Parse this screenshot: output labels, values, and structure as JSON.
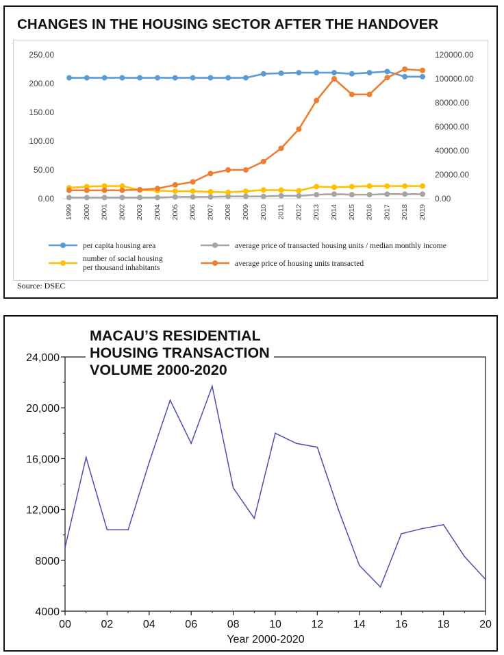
{
  "chart_data": [
    {
      "type": "line",
      "title": "CHANGES IN THE HOUSING SECTOR AFTER THE HANDOVER",
      "categories": [
        "1999",
        "2000",
        "2001",
        "2002",
        "2003",
        "2004",
        "2005",
        "2006",
        "2007",
        "2008",
        "2009",
        "2010",
        "2011",
        "2012",
        "2013",
        "2014",
        "2015",
        "2016",
        "2017",
        "2018",
        "2019"
      ],
      "y_left": {
        "ticks": [
          "250.00",
          "200.00",
          "150.00",
          "100.00",
          "50.00",
          "0.00"
        ],
        "ylim": [
          0,
          250
        ]
      },
      "y_right": {
        "ticks": [
          "120000.00",
          "100000.00",
          "80000.00",
          "60000.00",
          "40000.00",
          "20000.00",
          "0.00"
        ],
        "ylim": [
          0,
          120000
        ]
      },
      "series": [
        {
          "name": "per capita housing area",
          "axis": "left",
          "color": "#5b9bd5",
          "values": [
            210,
            210,
            210,
            210,
            210,
            210,
            210,
            210,
            210,
            210,
            210,
            217,
            218,
            219,
            219,
            219,
            217,
            219,
            221,
            212,
            212
          ]
        },
        {
          "name": "average price of transacted housing units / median monthly income",
          "axis": "left",
          "color": "#a5a5a5",
          "values": [
            2,
            2,
            2,
            2,
            2,
            2,
            3,
            3,
            3,
            4,
            4,
            4,
            5,
            5,
            7,
            8,
            7,
            7,
            8,
            8,
            8
          ]
        },
        {
          "name": "number of social housing per thousand inhabitants",
          "axis": "left",
          "color": "#ffc000",
          "values": [
            19,
            21,
            22,
            22,
            15,
            14,
            13,
            13,
            12,
            11,
            13,
            15,
            15,
            14,
            21,
            20,
            21,
            22,
            22,
            22,
            22
          ]
        },
        {
          "name": "average price of housing units transacted",
          "axis": "right",
          "color": "#ed7d31",
          "values": [
            7000,
            7000,
            7000,
            7000,
            7500,
            8500,
            11500,
            14000,
            21000,
            24000,
            24000,
            31000,
            42000,
            58000,
            82000,
            100000,
            87000,
            87000,
            101000,
            108000,
            107000
          ]
        }
      ],
      "legend": {
        "placement": "bottom",
        "items": [
          {
            "label": "per capita housing area",
            "color": "#5b9bd5"
          },
          {
            "label": "average price of transacted housing units / median monthly income",
            "color": "#a5a5a5"
          },
          {
            "label_lines": [
              "number of social housing",
              "per thousand inhabitants"
            ],
            "color": "#ffc000"
          },
          {
            "label": "average price of housing units transacted",
            "color": "#ed7d31"
          }
        ]
      },
      "source": "Source: DSEC"
    },
    {
      "type": "line",
      "title_lines": [
        "MACAU’S RESIDENTIAL",
        "HOUSING TRANSACTION",
        "VOLUME 2000-2020"
      ],
      "xlabel": "Year 2000-2020",
      "x": [
        0,
        1,
        2,
        3,
        4,
        5,
        6,
        7,
        8,
        9,
        10,
        11,
        12,
        13,
        14,
        15,
        16,
        17,
        18,
        19,
        20
      ],
      "values": [
        9000,
        16100,
        10400,
        10400,
        15700,
        20600,
        17200,
        21700,
        13700,
        11300,
        18000,
        17200,
        16900,
        12000,
        7600,
        5900,
        10100,
        10500,
        10800,
        8300,
        6500
      ],
      "xticks": [
        "00",
        "02",
        "04",
        "06",
        "08",
        "10",
        "12",
        "14",
        "16",
        "18",
        "20"
      ],
      "yticks": [
        "4000",
        "8000",
        "12,000",
        "16,000",
        "20,000",
        "24,000"
      ],
      "xlim": [
        0,
        20
      ],
      "ylim": [
        4000,
        24000
      ],
      "color": "#4a4fae"
    }
  ]
}
